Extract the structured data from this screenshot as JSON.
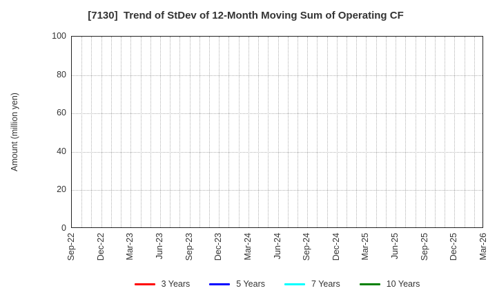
{
  "chart_data": {
    "type": "line",
    "title": "[7130]  Trend of StDev of 12-Month Moving Sum of Operating CF",
    "xlabel": "",
    "ylabel": "Amount (million yen)",
    "ylim": [
      0,
      100
    ],
    "yticks": [
      0,
      20,
      40,
      60,
      80,
      100
    ],
    "x_tick_labels": [
      "Sep-22",
      "Dec-22",
      "Mar-23",
      "Jun-23",
      "Sep-23",
      "Dec-23",
      "Mar-24",
      "Jun-24",
      "Sep-24",
      "Dec-24",
      "Mar-25",
      "Jun-25",
      "Sep-25",
      "Dec-25",
      "Mar-26"
    ],
    "months_per_tick": 3,
    "total_months": 42,
    "grid": "dotted",
    "grid_color": "#b0b0b0",
    "legend_position": "bottom-center",
    "plot_is_empty": true,
    "series": [
      {
        "name": "3 Years",
        "color": "#ff0000",
        "values": []
      },
      {
        "name": "5 Years",
        "color": "#0000ff",
        "values": []
      },
      {
        "name": "7 Years",
        "color": "#00ffff",
        "values": []
      },
      {
        "name": "10 Years",
        "color": "#008000",
        "values": []
      }
    ]
  }
}
